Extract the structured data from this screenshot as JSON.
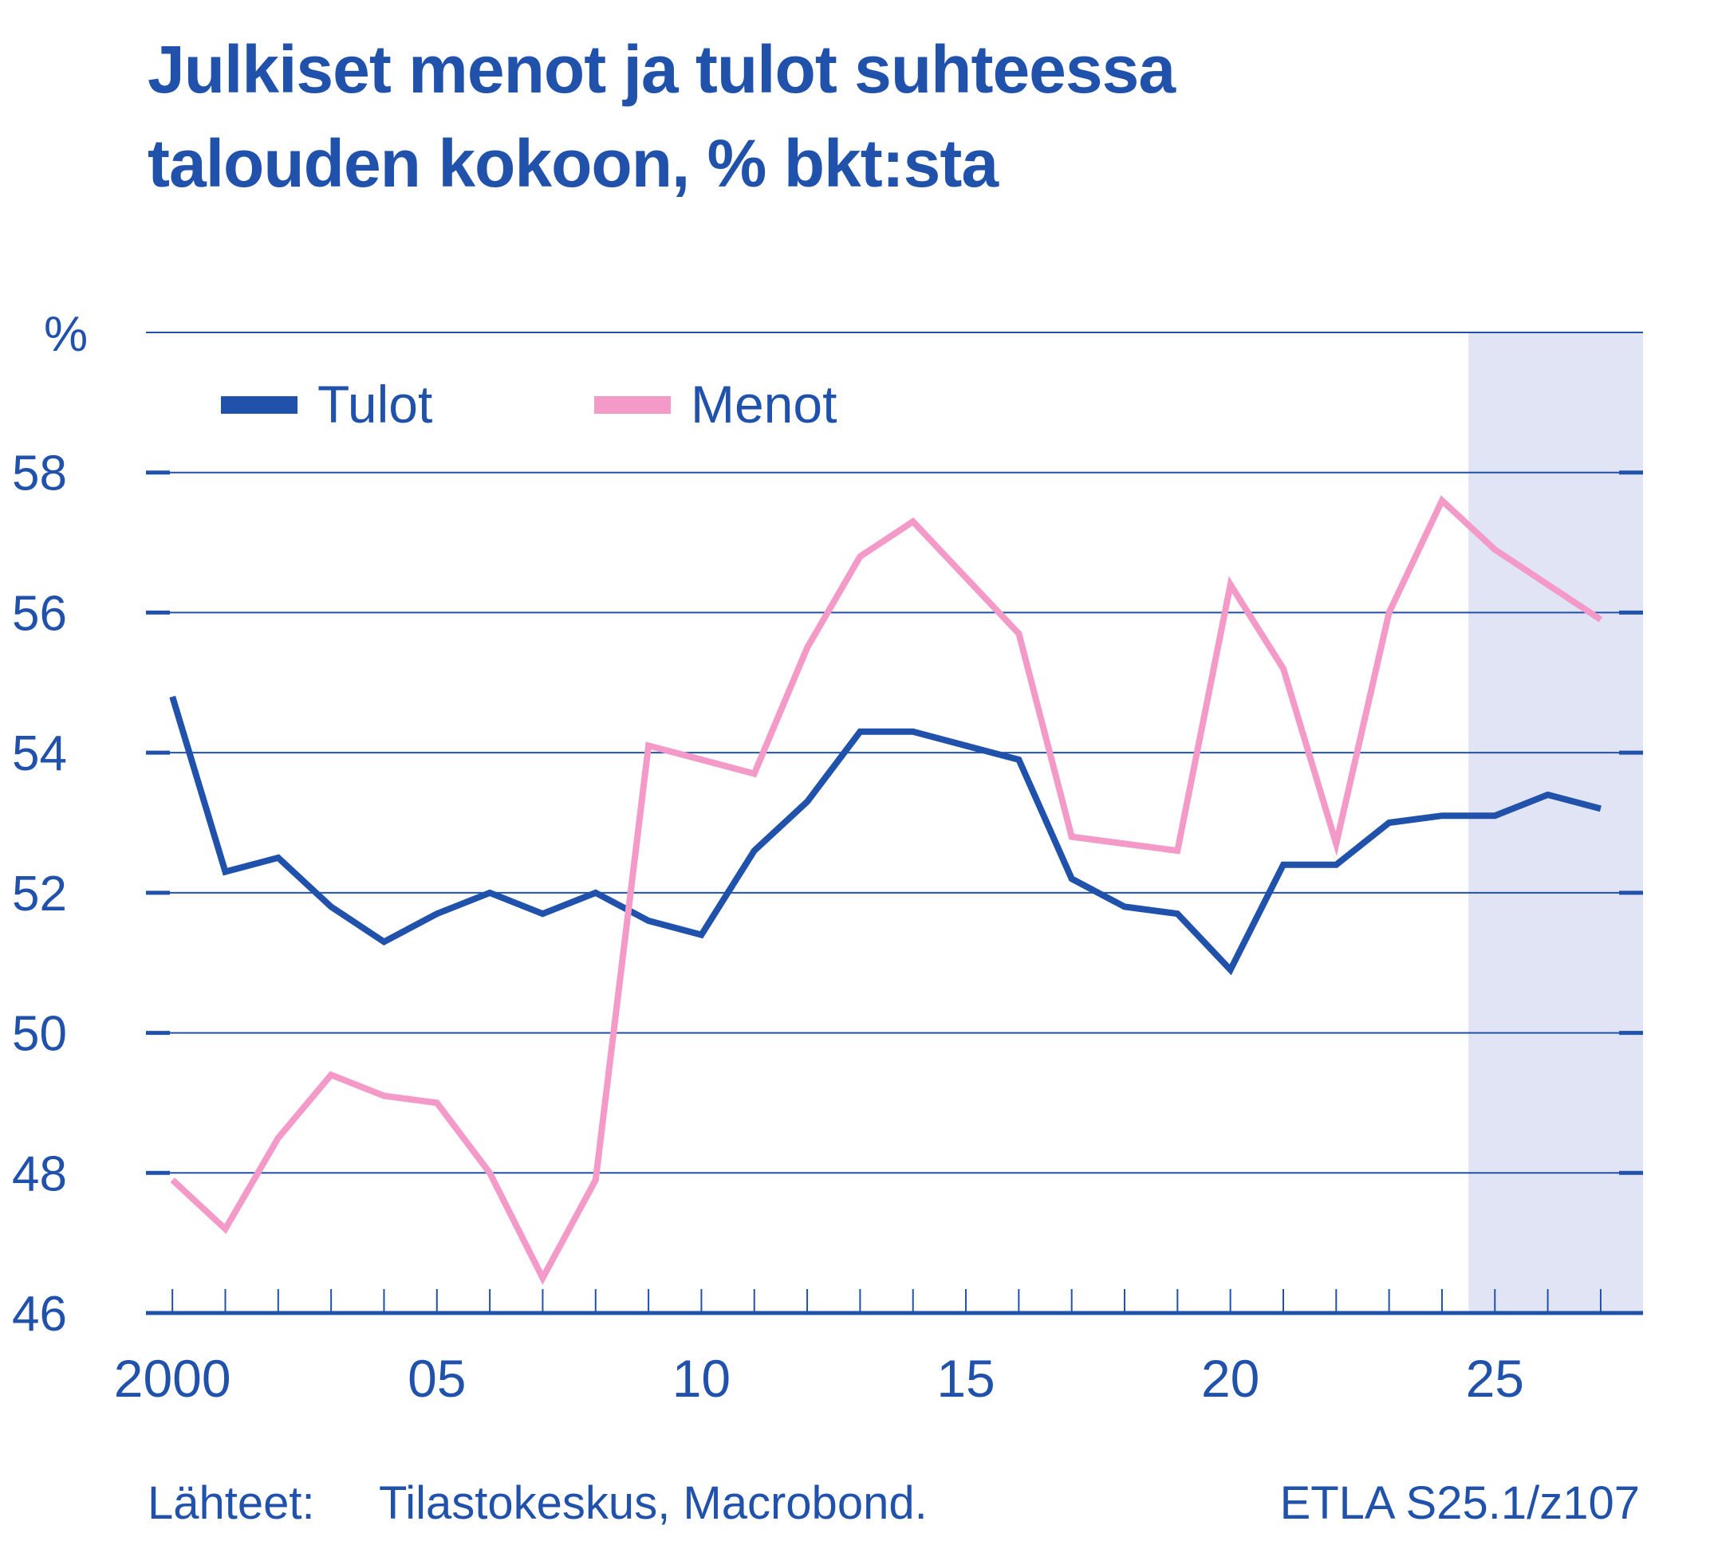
{
  "title": {
    "line1": "Julkiset menot ja tulot suhteessa",
    "line2": "talouden kokoon, % bkt:sta"
  },
  "footer": {
    "sources_label": "Lähteet:",
    "sources": "Tilastokeskus, Macrobond.",
    "code": "ETLA S25.1/z107"
  },
  "colors": {
    "accent": "#2152ab",
    "tulot": "#2152ab",
    "menot": "#f49ac8",
    "forecast_band": "#e1e4f4"
  },
  "chart_data": {
    "type": "line",
    "ylabel": "%",
    "ylim": [
      46,
      60
    ],
    "yticks": [
      "46",
      "48",
      "50",
      "52",
      "54",
      "56",
      "58"
    ],
    "xlim": [
      1999.5,
      2027.8
    ],
    "xticks": [
      {
        "year": 2000,
        "label": "2000"
      },
      {
        "year": 2005,
        "label": "05"
      },
      {
        "year": 2010,
        "label": "10"
      },
      {
        "year": 2015,
        "label": "15"
      },
      {
        "year": 2020,
        "label": "20"
      },
      {
        "year": 2025,
        "label": "25"
      }
    ],
    "grid": true,
    "legend": "top-left",
    "forecast_from": 2024.5,
    "x": [
      2000,
      2001,
      2002,
      2003,
      2004,
      2005,
      2006,
      2007,
      2008,
      2009,
      2010,
      2011,
      2012,
      2013,
      2014,
      2015,
      2016,
      2017,
      2018,
      2019,
      2020,
      2021,
      2022,
      2023,
      2024,
      2025,
      2026,
      2027
    ],
    "series": [
      {
        "name": "Tulot",
        "color": "#2152ab",
        "values": [
          54.8,
          52.3,
          52.5,
          51.8,
          51.3,
          51.7,
          52.0,
          51.7,
          52.0,
          51.6,
          51.4,
          52.6,
          53.3,
          54.3,
          54.3,
          54.1,
          53.9,
          52.2,
          51.8,
          51.7,
          50.9,
          52.4,
          52.4,
          53.0,
          53.1,
          53.1,
          53.4,
          53.2
        ]
      },
      {
        "name": "Menot",
        "color": "#f49ac8",
        "values": [
          47.9,
          47.2,
          48.5,
          49.4,
          49.1,
          49.0,
          48.0,
          46.5,
          47.9,
          54.1,
          53.9,
          53.7,
          55.5,
          56.8,
          57.3,
          56.5,
          55.7,
          52.8,
          52.7,
          52.6,
          56.4,
          55.2,
          52.7,
          56.0,
          57.6,
          56.9,
          56.4,
          55.9
        ]
      }
    ]
  }
}
